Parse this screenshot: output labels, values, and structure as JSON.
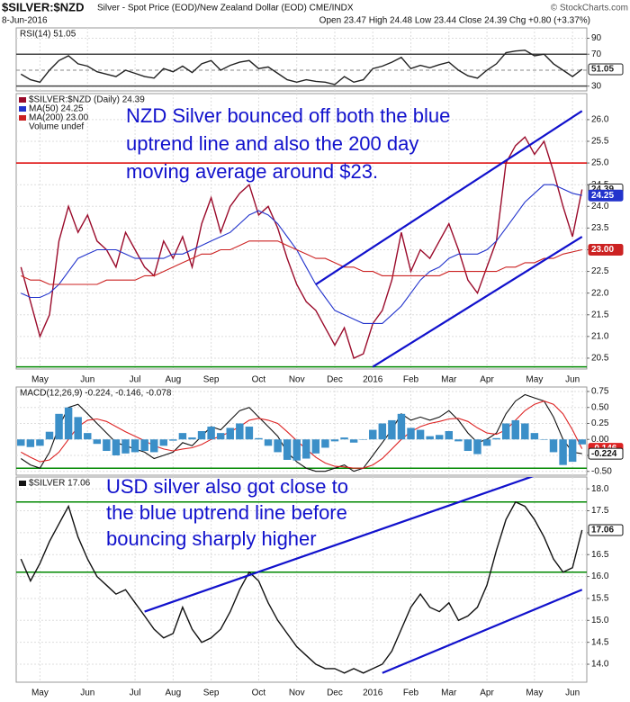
{
  "header": {
    "symbol": "$SILVER:$NZD",
    "description": "Silver - Spot Price (EOD)/New Zealand Dollar (EOD)  CME/INDX",
    "copyright": "© StockCharts.com",
    "date": "8-Jun-2016",
    "quote": "Open 23.47  High 24.48  Low 23.44  Close 24.39  Chg +0.80 (+3.37%)"
  },
  "chart_data": [
    {
      "type": "line",
      "title": "RSI(14) 51.05",
      "ylim": [
        24,
        103
      ],
      "yticks": [
        30,
        70,
        90
      ],
      "grid": true,
      "ref_lines": [
        {
          "value": 70,
          "color": "#444",
          "dash": false
        },
        {
          "value": 50,
          "color": "#888",
          "dash": true
        },
        {
          "value": 30,
          "color": "#444",
          "dash": false
        }
      ],
      "series": [
        {
          "name": "RSI(14)",
          "color": "#222",
          "values": [
            45,
            38,
            35,
            50,
            62,
            68,
            58,
            55,
            48,
            45,
            42,
            50,
            46,
            42,
            40,
            52,
            48,
            55,
            47,
            58,
            62,
            50,
            56,
            60,
            62,
            52,
            54,
            46,
            38,
            35,
            38,
            36,
            35,
            32,
            42,
            35,
            38,
            52,
            55,
            60,
            66,
            52,
            56,
            53,
            57,
            60,
            50,
            43,
            40,
            50,
            58,
            72,
            74,
            75,
            68,
            70,
            58,
            50,
            42,
            51.05
          ]
        }
      ],
      "badges": [
        {
          "label": "51.05",
          "value": 51.05,
          "color": "#ffffff",
          "text_color": "#222",
          "border": "#222"
        }
      ]
    },
    {
      "type": "line",
      "ylim": [
        20.25,
        26.6
      ],
      "yticks": [
        {
          "value": 20.5,
          "label": "20.5"
        },
        {
          "value": 21,
          "label": "21.0"
        },
        {
          "value": 21.5,
          "label": "21.5"
        },
        {
          "value": 22,
          "label": "22.0"
        },
        {
          "value": 22.5,
          "label": "22.5"
        },
        {
          "value": 23,
          "label": "23.0"
        },
        {
          "value": 23.5,
          "label": "23.5"
        },
        {
          "value": 24,
          "label": "24.0"
        },
        {
          "value": 24.5,
          "label": "24.5"
        },
        {
          "value": 25,
          "label": "25.0"
        },
        {
          "value": 25.5,
          "label": "25.5"
        },
        {
          "value": 26,
          "label": "26.0"
        }
      ],
      "grid": true,
      "categories": [
        null,
        null,
        "May",
        null,
        null,
        null,
        null,
        "Jun",
        null,
        null,
        null,
        null,
        "Jul",
        null,
        null,
        null,
        "Aug",
        null,
        null,
        null,
        "Sep",
        null,
        null,
        null,
        null,
        "Oct",
        null,
        null,
        null,
        "Nov",
        null,
        null,
        null,
        "Dec",
        null,
        null,
        null,
        "2016",
        null,
        null,
        null,
        "Feb",
        null,
        null,
        null,
        "Mar",
        null,
        null,
        null,
        "Apr",
        null,
        null,
        null,
        null,
        "May",
        null,
        null,
        null,
        "Jun",
        null
      ],
      "series": [
        {
          "name": "$SILVER:$NZD (Daily) 24.39",
          "color": "#9a0a2a",
          "values": [
            22.6,
            21.8,
            21.0,
            21.5,
            23.2,
            24.0,
            23.4,
            23.8,
            23.2,
            23.0,
            22.6,
            23.4,
            23.0,
            22.6,
            22.4,
            23.2,
            22.8,
            23.3,
            22.6,
            23.6,
            24.2,
            23.4,
            24.0,
            24.3,
            24.5,
            23.8,
            24.0,
            23.5,
            22.8,
            22.2,
            21.8,
            21.6,
            21.2,
            20.8,
            21.2,
            20.5,
            20.6,
            21.3,
            21.6,
            22.3,
            23.4,
            22.5,
            23.0,
            22.8,
            23.2,
            23.6,
            23.0,
            22.3,
            22.0,
            22.6,
            23.2,
            25.0,
            25.4,
            25.6,
            25.2,
            25.5,
            24.8,
            24.0,
            23.3,
            24.39
          ]
        },
        {
          "name": "MA(50) 24.25",
          "color": "#2233cc",
          "values": [
            22.0,
            21.9,
            21.9,
            22.0,
            22.2,
            22.5,
            22.8,
            22.9,
            23.0,
            23.0,
            23.0,
            22.9,
            22.8,
            22.8,
            22.8,
            22.8,
            22.9,
            22.9,
            23.0,
            23.1,
            23.2,
            23.3,
            23.4,
            23.6,
            23.8,
            23.9,
            23.8,
            23.6,
            23.3,
            23.0,
            22.6,
            22.2,
            21.9,
            21.6,
            21.5,
            21.4,
            21.3,
            21.3,
            21.3,
            21.5,
            21.7,
            22.0,
            22.3,
            22.5,
            22.6,
            22.8,
            22.9,
            22.9,
            22.9,
            23.0,
            23.2,
            23.5,
            23.8,
            24.1,
            24.3,
            24.5,
            24.5,
            24.4,
            24.3,
            24.25
          ]
        },
        {
          "name": "MA(200) 23.00",
          "color": "#cc2222",
          "values": [
            22.4,
            22.3,
            22.3,
            22.2,
            22.2,
            22.2,
            22.2,
            22.2,
            22.2,
            22.3,
            22.3,
            22.3,
            22.3,
            22.4,
            22.4,
            22.5,
            22.6,
            22.7,
            22.8,
            22.9,
            22.9,
            23.0,
            23.0,
            23.1,
            23.2,
            23.2,
            23.2,
            23.2,
            23.1,
            23.0,
            22.9,
            22.8,
            22.8,
            22.7,
            22.6,
            22.6,
            22.5,
            22.5,
            22.4,
            22.4,
            22.4,
            22.4,
            22.4,
            22.4,
            22.4,
            22.5,
            22.5,
            22.5,
            22.5,
            22.5,
            22.5,
            22.6,
            22.6,
            22.7,
            22.7,
            22.8,
            22.8,
            22.9,
            22.95,
            23.0
          ]
        }
      ],
      "legend_note": "Volume undef",
      "ref_lines": [
        {
          "value": 25,
          "color": "#dd0000",
          "dash": false
        },
        {
          "value": 20.3,
          "color": "#008800",
          "dash": false
        }
      ],
      "trend_lines": [
        {
          "from": 31,
          "from_value": 22.2,
          "to": 59,
          "to_value": 26.2,
          "color": "#1111cc"
        },
        {
          "from": 37,
          "from_value": 20.3,
          "to": 59,
          "to_value": 23.3,
          "color": "#1111cc"
        }
      ],
      "annotation": [
        "NZD Silver bounced off both the blue",
        "uptrend line and also the 200 day",
        "moving average around $23."
      ],
      "badges": [
        {
          "label": "24.39",
          "value": 24.39,
          "color": "#ffffff",
          "text_color": "#222",
          "border": "#222"
        },
        {
          "label": "24.25",
          "value": 24.25,
          "color": "#2233cc",
          "text_color": "#fff",
          "border": "#2233cc"
        },
        {
          "label": "23.00",
          "value": 23.0,
          "color": "#cc2222",
          "text_color": "#fff",
          "border": "#cc2222"
        }
      ]
    },
    {
      "type": "line",
      "title": "MACD(12,26,9) -0.224, -0.146, -0.078",
      "ylim": [
        -0.56,
        0.82
      ],
      "yticks": [
        {
          "value": -0.5,
          "label": "-0.50"
        },
        {
          "value": -0.25,
          "label": "-0.25"
        },
        {
          "value": 0,
          "label": "0.00"
        },
        {
          "value": 0.25,
          "label": "0.25"
        },
        {
          "value": 0.5,
          "label": "0.50"
        },
        {
          "value": 0.75,
          "label": "0.75"
        }
      ],
      "grid": true,
      "ref_lines": [
        {
          "value": -0.45,
          "color": "#008800",
          "dash": false
        }
      ],
      "series": [
        {
          "name": "MACD",
          "color": "#111",
          "values": [
            -0.3,
            -0.4,
            -0.45,
            -0.2,
            0.2,
            0.5,
            0.55,
            0.4,
            0.25,
            0.1,
            -0.05,
            -0.1,
            -0.15,
            -0.2,
            -0.3,
            -0.25,
            -0.2,
            -0.05,
            -0.1,
            0.05,
            0.2,
            0.15,
            0.3,
            0.45,
            0.5,
            0.35,
            0.2,
            0.05,
            -0.2,
            -0.35,
            -0.45,
            -0.5,
            -0.5,
            -0.45,
            -0.4,
            -0.5,
            -0.45,
            -0.25,
            -0.05,
            0.15,
            0.4,
            0.3,
            0.35,
            0.3,
            0.35,
            0.45,
            0.3,
            0.1,
            -0.05,
            0.0,
            0.1,
            0.4,
            0.6,
            0.7,
            0.65,
            0.6,
            0.35,
            0.0,
            -0.2,
            -0.224
          ]
        },
        {
          "name": "Signal",
          "color": "#dd2222",
          "values": [
            -0.2,
            -0.28,
            -0.35,
            -0.32,
            -0.2,
            0.0,
            0.2,
            0.3,
            0.32,
            0.28,
            0.2,
            0.12,
            0.05,
            -0.02,
            -0.1,
            -0.15,
            -0.18,
            -0.15,
            -0.13,
            -0.08,
            0.0,
            0.05,
            0.12,
            0.2,
            0.3,
            0.33,
            0.3,
            0.25,
            0.12,
            -0.02,
            -0.15,
            -0.28,
            -0.37,
            -0.42,
            -0.43,
            -0.45,
            -0.45,
            -0.4,
            -0.3,
            -0.15,
            0.0,
            0.12,
            0.2,
            0.25,
            0.28,
            0.32,
            0.33,
            0.28,
            0.18,
            0.1,
            0.08,
            0.15,
            0.3,
            0.45,
            0.55,
            0.6,
            0.55,
            0.4,
            0.15,
            -0.146
          ]
        },
        {
          "name": "Histogram",
          "kind": "bar",
          "color": "#3b8fc8",
          "values": [
            -0.1,
            -0.12,
            -0.1,
            0.12,
            0.4,
            0.5,
            0.35,
            0.1,
            -0.07,
            -0.18,
            -0.25,
            -0.22,
            -0.2,
            -0.18,
            -0.2,
            -0.1,
            -0.02,
            0.1,
            0.03,
            0.13,
            0.2,
            0.1,
            0.18,
            0.25,
            0.2,
            0.02,
            -0.1,
            -0.2,
            -0.32,
            -0.33,
            -0.3,
            -0.22,
            -0.13,
            -0.03,
            0.03,
            -0.05,
            0.0,
            0.15,
            0.25,
            0.3,
            0.4,
            0.18,
            0.15,
            0.05,
            0.07,
            0.13,
            -0.03,
            -0.18,
            -0.23,
            -0.1,
            0.02,
            0.25,
            0.3,
            0.25,
            0.1,
            0.0,
            -0.2,
            -0.4,
            -0.35,
            -0.078
          ]
        }
      ],
      "badges": [
        {
          "label": "-0.146",
          "value": -0.146,
          "color": "#dd2222",
          "text_color": "#fff",
          "border": "#dd2222"
        },
        {
          "label": "-0.224",
          "value": -0.224,
          "color": "#ffffff",
          "text_color": "#111",
          "border": "#111"
        }
      ]
    },
    {
      "type": "line",
      "ylim": [
        13.59,
        18.27
      ],
      "yticks": [
        {
          "value": 14,
          "label": "14.0"
        },
        {
          "value": 14.5,
          "label": "14.5"
        },
        {
          "value": 15,
          "label": "15.0"
        },
        {
          "value": 15.5,
          "label": "15.5"
        },
        {
          "value": 16,
          "label": "16.0"
        },
        {
          "value": 16.5,
          "label": "16.5"
        },
        {
          "value": 17,
          "label": "17.0"
        },
        {
          "value": 17.5,
          "label": "17.5"
        },
        {
          "value": 18,
          "label": "18.0"
        }
      ],
      "grid": true,
      "categories": [
        null,
        null,
        "May",
        null,
        null,
        null,
        null,
        "Jun",
        null,
        null,
        null,
        null,
        "Jul",
        null,
        null,
        null,
        "Aug",
        null,
        null,
        null,
        "Sep",
        null,
        null,
        null,
        null,
        "Oct",
        null,
        null,
        null,
        "Nov",
        null,
        null,
        null,
        "Dec",
        null,
        null,
        null,
        "2016",
        null,
        null,
        null,
        "Feb",
        null,
        null,
        null,
        "Mar",
        null,
        null,
        null,
        "Apr",
        null,
        null,
        null,
        null,
        "May",
        null,
        null,
        null,
        "Jun",
        null
      ],
      "series": [
        {
          "name": "$SILVER 17.06",
          "color": "#111",
          "values": [
            16.4,
            15.9,
            16.3,
            16.8,
            17.2,
            17.6,
            16.9,
            16.4,
            16.0,
            15.8,
            15.6,
            15.7,
            15.4,
            15.1,
            14.8,
            14.6,
            14.7,
            15.3,
            14.8,
            14.5,
            14.6,
            14.8,
            15.2,
            15.7,
            16.1,
            15.9,
            15.4,
            15.0,
            14.7,
            14.4,
            14.2,
            14.0,
            13.9,
            13.9,
            13.8,
            13.9,
            13.8,
            13.9,
            14.0,
            14.3,
            14.8,
            15.3,
            15.6,
            15.3,
            15.2,
            15.4,
            15.0,
            15.1,
            15.3,
            15.8,
            16.6,
            17.3,
            17.7,
            17.6,
            17.3,
            16.9,
            16.4,
            16.1,
            16.2,
            17.06
          ]
        }
      ],
      "ref_lines": [
        {
          "value": 17.7,
          "color": "#008800",
          "dash": false
        },
        {
          "value": 16.1,
          "color": "#008800",
          "dash": false
        }
      ],
      "trend_lines": [
        {
          "from": 13,
          "from_value": 15.2,
          "to": 56,
          "to_value": 18.45,
          "color": "#1111cc"
        },
        {
          "from": 38,
          "from_value": 13.8,
          "to": 59,
          "to_value": 15.7,
          "color": "#1111cc"
        }
      ],
      "annotation": [
        "USD silver also got close to",
        "the blue uptrend line before",
        "bouncing sharply higher"
      ],
      "badges": [
        {
          "label": "17.06",
          "value": 17.06,
          "color": "#ffffff",
          "text_color": "#111",
          "border": "#111"
        }
      ]
    }
  ]
}
